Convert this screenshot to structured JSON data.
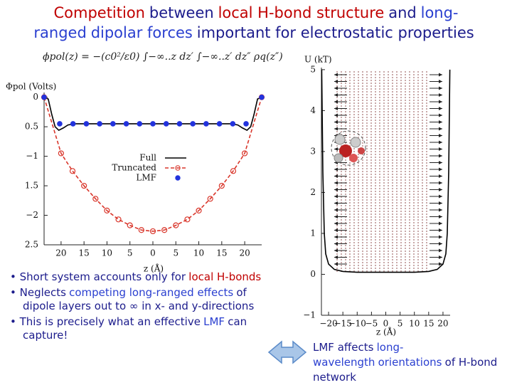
{
  "title": {
    "segments": [
      {
        "text": "Competition",
        "color": "#c00000"
      },
      {
        "text": "between",
        "color": "#1c1c8c"
      },
      {
        "text": "local H-bond structure",
        "color": "#c00000"
      },
      {
        "text": "and",
        "color": "#1c1c8c"
      },
      {
        "text": "long-ranged",
        "color": "#2a3fd0"
      },
      {
        "text": "dipolar forces",
        "color": "#2a3fd0"
      },
      {
        "text": "important for electrostatic properties",
        "color": "#1c1c8c"
      }
    ]
  },
  "equation": "ϕpol(z) = −(c0²/ε0) ∫−∞..z dz′ ∫−∞..z′ dz″ ρq(z″)",
  "bullets": [
    {
      "segments": [
        {
          "text": "• Short system accounts only for",
          "color": "#1c1c8c"
        },
        {
          "text": "local H-bonds",
          "color": "#c00000"
        }
      ]
    },
    {
      "segments": [
        {
          "text": "• Neglects",
          "color": "#1c1c8c"
        },
        {
          "text": "competing long-ranged effects",
          "color": "#2a3fd0"
        },
        {
          "text": "of dipole layers out to ∞ in x- and y-directions",
          "color": "#1c1c8c"
        }
      ]
    },
    {
      "segments": [
        {
          "text": "• This is precisely what an effective",
          "color": "#1c1c8c"
        },
        {
          "text": "LMF",
          "color": "#2a3fd0"
        },
        {
          "text": "can capture!",
          "color": "#1c1c8c"
        }
      ]
    }
  ],
  "caption": {
    "segments": [
      {
        "text": "LMF affects",
        "color": "#1c1c8c"
      },
      {
        "text": "long-wavelength",
        "color": "#2a3fd0"
      },
      {
        "text": "orientations",
        "color": "#2a3fd0"
      },
      {
        "text": "of H-bond network",
        "color": "#1c1c8c"
      }
    ]
  },
  "chart_data": [
    {
      "type": "line",
      "ylabel": "Φpol (Volts)",
      "xlabel": "z (Å)",
      "xlim": [
        -23.7,
        23.7
      ],
      "ylim": [
        -2.5,
        0.08
      ],
      "xticks": [
        {
          "value": -20,
          "label": "20"
        },
        {
          "value": -15,
          "label": "15"
        },
        {
          "value": -10,
          "label": "10"
        },
        {
          "value": -5,
          "label": "5"
        },
        0,
        5,
        10,
        15,
        20
      ],
      "yticks": [
        0,
        {
          "value": -0.5,
          "label": "0.5"
        },
        {
          "value": -1,
          "label": "−1"
        },
        {
          "value": -1.5,
          "label": "1.5"
        },
        {
          "value": -2,
          "label": "−2"
        },
        {
          "value": -2.5,
          "label": "2.5"
        }
      ],
      "legend": true,
      "legend_position": "center right",
      "series": [
        {
          "name": "Full",
          "color": "#000000",
          "line_style": "solid",
          "marker": "none",
          "x": [
            -23.7,
            -22.8,
            -22,
            -21.3,
            -20.5,
            -19.5,
            -18.5,
            -17,
            -14,
            -10,
            -5,
            0,
            5,
            10,
            14,
            17,
            18.5,
            19.5,
            20.5,
            21.3,
            22,
            22.8,
            23.7
          ],
          "values": [
            0,
            -0.03,
            -0.3,
            -0.5,
            -0.56,
            -0.52,
            -0.47,
            -0.45,
            -0.45,
            -0.45,
            -0.45,
            -0.45,
            -0.45,
            -0.45,
            -0.45,
            -0.45,
            -0.47,
            -0.52,
            -0.56,
            -0.5,
            -0.3,
            -0.03,
            0
          ]
        },
        {
          "name": "Truncated",
          "color": "#d9362b",
          "line_style": "dashed",
          "marker": "open-circle",
          "x": [
            -23.7,
            -20,
            -17.5,
            -15,
            -12.5,
            -10,
            -7.5,
            -5,
            -2.5,
            0,
            2.5,
            5,
            7.5,
            10,
            12.5,
            15,
            17.5,
            20,
            23.7
          ],
          "values": [
            0,
            -0.95,
            -1.25,
            -1.5,
            -1.72,
            -1.92,
            -2.07,
            -2.17,
            -2.25,
            -2.27,
            -2.25,
            -2.17,
            -2.07,
            -1.92,
            -1.72,
            -1.5,
            -1.25,
            -0.95,
            0
          ]
        },
        {
          "name": "LMF",
          "color": "#2233dd",
          "line_style": "none",
          "marker": "dot",
          "x": [
            -23.7,
            -20.3,
            -17.4,
            -14.5,
            -11.6,
            -8.7,
            -5.8,
            -2.9,
            0,
            2.9,
            5.8,
            8.7,
            11.6,
            14.5,
            17.4,
            20.3,
            23.7
          ],
          "values": [
            0,
            -0.45,
            -0.45,
            -0.45,
            -0.45,
            -0.45,
            -0.45,
            -0.45,
            -0.45,
            -0.45,
            -0.45,
            -0.45,
            -0.45,
            -0.45,
            -0.45,
            -0.45,
            0
          ]
        }
      ]
    },
    {
      "type": "line",
      "ylabel": "U (kT)",
      "xlabel": "z (Å)",
      "xlim": [
        -22.5,
        22.5
      ],
      "ylim": [
        -1,
        5.05
      ],
      "xticks": [
        {
          "value": -20,
          "label": "−20"
        },
        {
          "value": -15,
          "label": "−15"
        },
        {
          "value": -10,
          "label": "−10"
        },
        {
          "value": -5,
          "label": "−5"
        },
        0,
        5,
        10,
        15,
        20
      ],
      "yticks": [
        {
          "value": -1,
          "label": "−1"
        },
        0,
        1,
        2,
        3,
        4,
        5
      ],
      "legend": false,
      "series": [
        {
          "color": "#000000",
          "line_style": "solid",
          "marker": "none",
          "x": [
            -22.4,
            -22,
            -21.5,
            -21,
            -20,
            -18,
            -15,
            -10,
            0,
            10,
            15,
            18,
            20,
            21,
            21.5,
            22,
            22.4
          ],
          "values": [
            5,
            2.5,
            1,
            0.5,
            0.25,
            0.12,
            0.07,
            0.05,
            0.05,
            0.05,
            0.07,
            0.12,
            0.25,
            0.5,
            1,
            2.5,
            5
          ]
        }
      ]
    }
  ]
}
